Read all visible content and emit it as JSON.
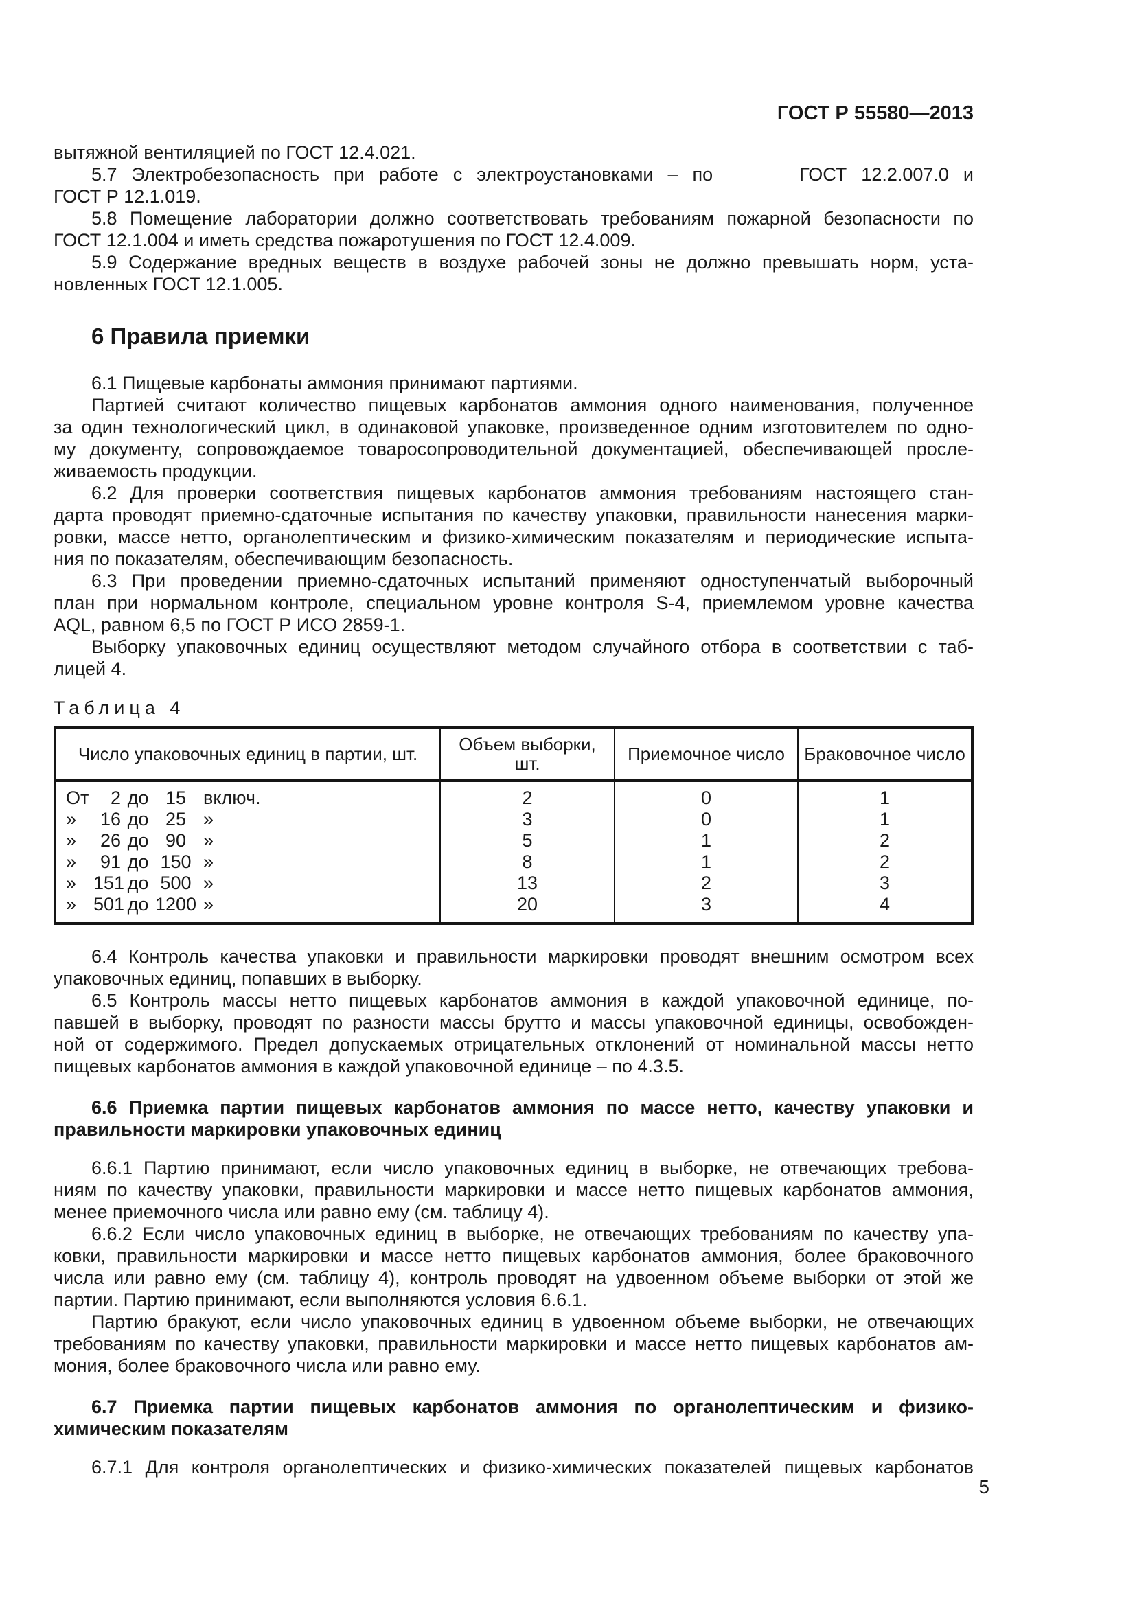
{
  "header": {
    "doc_code": "ГОСТ Р 55580—2013"
  },
  "footer": {
    "page_number": "5"
  },
  "content": [
    {
      "type": "para",
      "indent": false,
      "lines": [
        "вытяжной вентиляцией по ГОСТ 12.4.021."
      ]
    },
    {
      "type": "para",
      "indent": true,
      "lines": [
        "5.7 Электробезопасность при работе с электроустановками – по      ГОСТ 12.2.007.0 и",
        "ГОСТ Р 12.1.019."
      ]
    },
    {
      "type": "para",
      "indent": true,
      "lines": [
        "5.8 Помещение лаборатории должно соответствовать требованиям пожарной безопасности по",
        "ГОСТ 12.1.004 и иметь средства пожаротушения по ГОСТ 12.4.009."
      ]
    },
    {
      "type": "para",
      "indent": true,
      "lines": [
        "5.9 Содержание вредных веществ в воздухе рабочей зоны не должно превышать норм, уста-",
        "новленных ГОСТ 12.1.005."
      ]
    },
    {
      "type": "h1",
      "text": "6 Правила приемки"
    },
    {
      "type": "para",
      "indent": true,
      "lines": [
        "6.1 Пищевые карбонаты аммония принимают партиями."
      ]
    },
    {
      "type": "para",
      "indent": true,
      "lines": [
        "Партией считают количество пищевых карбонатов аммония одного наименования, полученное",
        "за один технологический цикл, в одинаковой упаковке, произведенное одним изготовителем по одно-",
        "му документу, сопровождаемое товаросопроводительной документацией, обеспечивающей просле-",
        "живаемость продукции."
      ]
    },
    {
      "type": "para",
      "indent": true,
      "lines": [
        "6.2 Для проверки соответствия пищевых карбонатов аммония требованиям настоящего стан-",
        "дарта проводят приемно-сдаточные испытания по качеству упаковки, правильности нанесения марки-",
        "ровки, массе нетто, органолептическим и физико-химическим показателям и периодические испыта-",
        "ния по показателям, обеспечивающим безопасность."
      ]
    },
    {
      "type": "para",
      "indent": true,
      "lines": [
        "6.3 При проведении приемно-сдаточных испытаний применяют одноступенчатый выборочный",
        "план при нормальном контроле, специальном уровне контроля S-4, приемлемом уровне качества",
        "AQL, равном 6,5 по ГОСТ Р ИСО 2859-1."
      ]
    },
    {
      "type": "para",
      "indent": true,
      "lines": [
        "Выборку упаковочных единиц осуществляют методом случайного отбора в соответствии с таб-",
        "лицей 4."
      ]
    },
    {
      "type": "table_label",
      "text": "Таблица 4"
    },
    {
      "type": "table",
      "columns": [
        "Число упаковочных единиц в партии, шт.",
        "Объем выборки, шт.",
        "Приемочное число",
        "Браковочное число"
      ],
      "col_widths": [
        "42%",
        "19%",
        "20%",
        "19%"
      ],
      "rows": [
        {
          "range": [
            "От",
            "2",
            "до",
            "15",
            "включ."
          ],
          "sample": "2",
          "accept": "0",
          "reject": "1"
        },
        {
          "range": [
            "»",
            "16",
            "до",
            "25",
            "»"
          ],
          "sample": "3",
          "accept": "0",
          "reject": "1"
        },
        {
          "range": [
            "»",
            "26",
            "до",
            "90",
            "»"
          ],
          "sample": "5",
          "accept": "1",
          "reject": "2"
        },
        {
          "range": [
            "»",
            "91",
            "до",
            "150",
            "»"
          ],
          "sample": "8",
          "accept": "1",
          "reject": "2"
        },
        {
          "range": [
            "»",
            "151",
            "до",
            "500",
            "»"
          ],
          "sample": "13",
          "accept": "2",
          "reject": "3"
        },
        {
          "range": [
            "»",
            "501",
            "до",
            "1200",
            "»"
          ],
          "sample": "20",
          "accept": "3",
          "reject": "4"
        }
      ]
    },
    {
      "type": "para",
      "indent": true,
      "lines": [
        "6.4 Контроль качества упаковки и правильности маркировки проводят внешним осмотром всех",
        "упаковочных единиц, попавших в выборку."
      ]
    },
    {
      "type": "para",
      "indent": true,
      "lines": [
        "6.5 Контроль массы нетто пищевых карбонатов аммония в каждой упаковочной единице, по-",
        "павшей в выборку, проводят по разности массы брутто и массы упаковочной единицы, освобожден-",
        "ной от содержимого. Предел допускаемых отрицательных отклонений от номинальной массы нетто",
        "пищевых карбонатов аммония в каждой упаковочной единице – по 4.3.5."
      ]
    },
    {
      "type": "para",
      "indent": true,
      "bold": true,
      "lines": [
        "6.6 Приемка партии пищевых карбонатов аммония по массе нетто, качеству упаковки и",
        "правильности маркировки упаковочных единиц"
      ]
    },
    {
      "type": "para",
      "indent": true,
      "lines": [
        "6.6.1 Партию принимают, если число упаковочных единиц в выборке, не отвечающих требова-",
        "ниям по качеству упаковки, правильности маркировки и массе нетто пищевых карбонатов аммония,",
        "менее приемочного числа или равно ему (см. таблицу 4)."
      ]
    },
    {
      "type": "para",
      "indent": true,
      "lines": [
        "6.6.2 Если число упаковочных единиц в выборке, не отвечающих требованиям по качеству упа-",
        "ковки, правильности маркировки и массе нетто пищевых карбонатов аммония, более браковочного",
        "числа или равно ему (см. таблицу 4), контроль проводят на удвоенном объеме выборки от этой же",
        "партии. Партию принимают, если выполняются условия 6.6.1."
      ]
    },
    {
      "type": "para",
      "indent": true,
      "lines": [
        "Партию бракуют, если число упаковочных единиц в удвоенном объеме выборки, не отвечающих",
        "требованиям по качеству упаковки, правильности маркировки и массе нетто пищевых карбонатов ам-",
        "мония, более браковочного числа или равно ему."
      ]
    },
    {
      "type": "para",
      "indent": true,
      "bold": true,
      "lines": [
        "6.7 Приемка партии пищевых карбонатов аммония по органолептическим и физико-",
        "химическим показателям"
      ]
    },
    {
      "type": "para",
      "indent": true,
      "fill_last": true,
      "lines": [
        "6.7.1 Для контроля органолептических и физико-химических показателей пищевых карбонатов"
      ]
    }
  ]
}
